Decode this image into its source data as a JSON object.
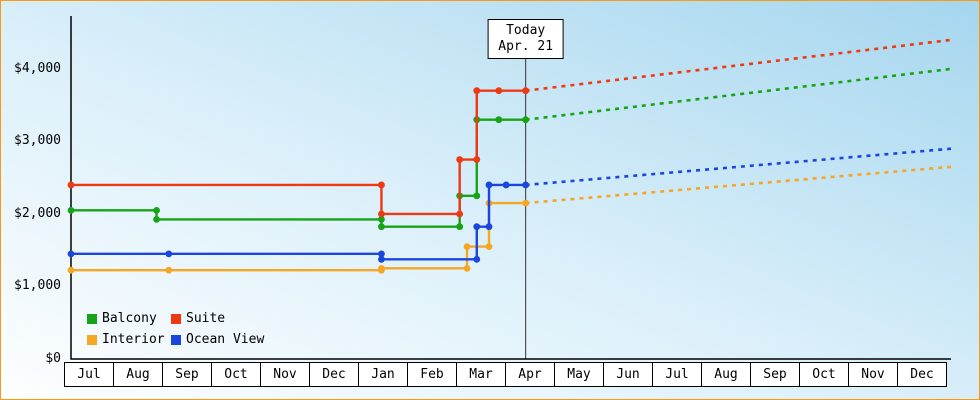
{
  "frame": {
    "border_color": "#fb9912",
    "bg_gradient_from": "#fdfeff",
    "bg_gradient_to": "#a5d6ee"
  },
  "chart_data": {
    "type": "line",
    "title": "",
    "xlabel": "",
    "ylabel": "",
    "grid": false,
    "ylim": [
      0,
      4730
    ],
    "month_span": 18,
    "y_ticks": [
      {
        "value": 0,
        "label": "$0"
      },
      {
        "value": 1000,
        "label": "$1,000"
      },
      {
        "value": 2000,
        "label": "$2,000"
      },
      {
        "value": 3000,
        "label": "$3,000"
      },
      {
        "value": 4000,
        "label": "$4,000"
      }
    ],
    "months": [
      "Jul",
      "Aug",
      "Sep",
      "Oct",
      "Nov",
      "Dec",
      "Jan",
      "Feb",
      "Mar",
      "Apr",
      "May",
      "Jun",
      "Jul",
      "Aug",
      "Sep",
      "Oct",
      "Nov",
      "Dec"
    ],
    "today": {
      "label_line1": "Today",
      "label_line2": "Apr. 21",
      "month_index": 9.3
    },
    "series": [
      {
        "name": "Interior",
        "color": "#f5a623",
        "history": [
          [
            0,
            1225
          ],
          [
            2,
            1225
          ],
          [
            6.35,
            1225
          ],
          [
            6.35,
            1250
          ],
          [
            8.1,
            1250
          ],
          [
            8.1,
            1550
          ],
          [
            8.55,
            1550
          ],
          [
            8.55,
            2150
          ],
          [
            9.3,
            2150
          ]
        ],
        "forecast": [
          [
            9.3,
            2150
          ],
          [
            18,
            2650
          ]
        ]
      },
      {
        "name": "Ocean View",
        "color": "#1b46dd",
        "history": [
          [
            0,
            1450
          ],
          [
            2,
            1450
          ],
          [
            6.35,
            1450
          ],
          [
            6.35,
            1375
          ],
          [
            8.3,
            1375
          ],
          [
            8.3,
            1825
          ],
          [
            8.55,
            1825
          ],
          [
            8.55,
            2400
          ],
          [
            8.9,
            2400
          ],
          [
            9.3,
            2400
          ]
        ],
        "forecast": [
          [
            9.3,
            2400
          ],
          [
            18,
            2900
          ]
        ]
      },
      {
        "name": "Balcony",
        "color": "#17a317",
        "history": [
          [
            0,
            2050
          ],
          [
            1.75,
            2050
          ],
          [
            1.75,
            1925
          ],
          [
            6.35,
            1925
          ],
          [
            6.35,
            1825
          ],
          [
            7.95,
            1825
          ],
          [
            7.95,
            2250
          ],
          [
            8.3,
            2250
          ],
          [
            8.3,
            3300
          ],
          [
            8.75,
            3300
          ],
          [
            9.3,
            3300
          ]
        ],
        "forecast": [
          [
            9.3,
            3300
          ],
          [
            18,
            4000
          ]
        ]
      },
      {
        "name": "Suite",
        "color": "#ee3914",
        "history": [
          [
            0,
            2400
          ],
          [
            6.35,
            2400
          ],
          [
            6.35,
            2000
          ],
          [
            7.95,
            2000
          ],
          [
            7.95,
            2750
          ],
          [
            8.3,
            2750
          ],
          [
            8.3,
            3700
          ],
          [
            8.75,
            3700
          ],
          [
            9.3,
            3700
          ]
        ],
        "forecast": [
          [
            9.3,
            3700
          ],
          [
            18,
            4400
          ]
        ]
      }
    ]
  },
  "legend": {
    "items": [
      "Balcony",
      "Suite",
      "Interior",
      "Ocean View"
    ]
  }
}
